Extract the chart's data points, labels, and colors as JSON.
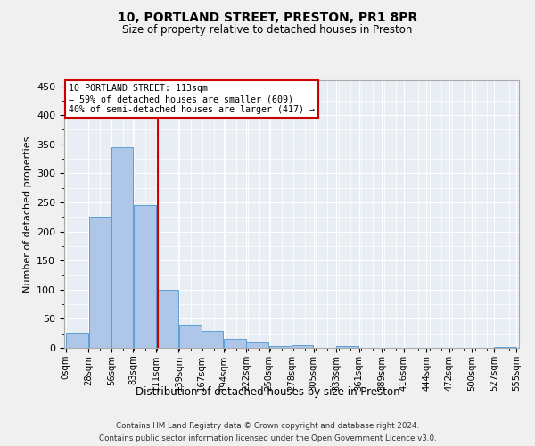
{
  "title1": "10, PORTLAND STREET, PRESTON, PR1 8PR",
  "title2": "Size of property relative to detached houses in Preston",
  "xlabel": "Distribution of detached houses by size in Preston",
  "ylabel": "Number of detached properties",
  "bar_color": "#aec6e8",
  "bar_edge_color": "#5a9fd4",
  "background_color": "#e8eef4",
  "grid_color": "#ffffff",
  "vline_x": 113,
  "vline_color": "#cc0000",
  "annotation_text": "10 PORTLAND STREET: 113sqm\n← 59% of detached houses are smaller (609)\n40% of semi-detached houses are larger (417) →",
  "annotation_box_color": "#ffffff",
  "annotation_box_edge": "#cc0000",
  "bins": [
    0,
    28,
    56,
    83,
    111,
    139,
    167,
    194,
    222,
    250,
    278,
    305,
    333,
    361,
    389,
    416,
    444,
    472,
    500,
    527,
    555
  ],
  "bar_heights": [
    26,
    226,
    345,
    246,
    100,
    40,
    29,
    15,
    10,
    3,
    4,
    0,
    3,
    0,
    0,
    0,
    0,
    0,
    0,
    1
  ],
  "ylim": [
    0,
    460
  ],
  "yticks": [
    0,
    50,
    100,
    150,
    200,
    250,
    300,
    350,
    400,
    450
  ],
  "footnote1": "Contains HM Land Registry data © Crown copyright and database right 2024.",
  "footnote2": "Contains public sector information licensed under the Open Government Licence v3.0."
}
